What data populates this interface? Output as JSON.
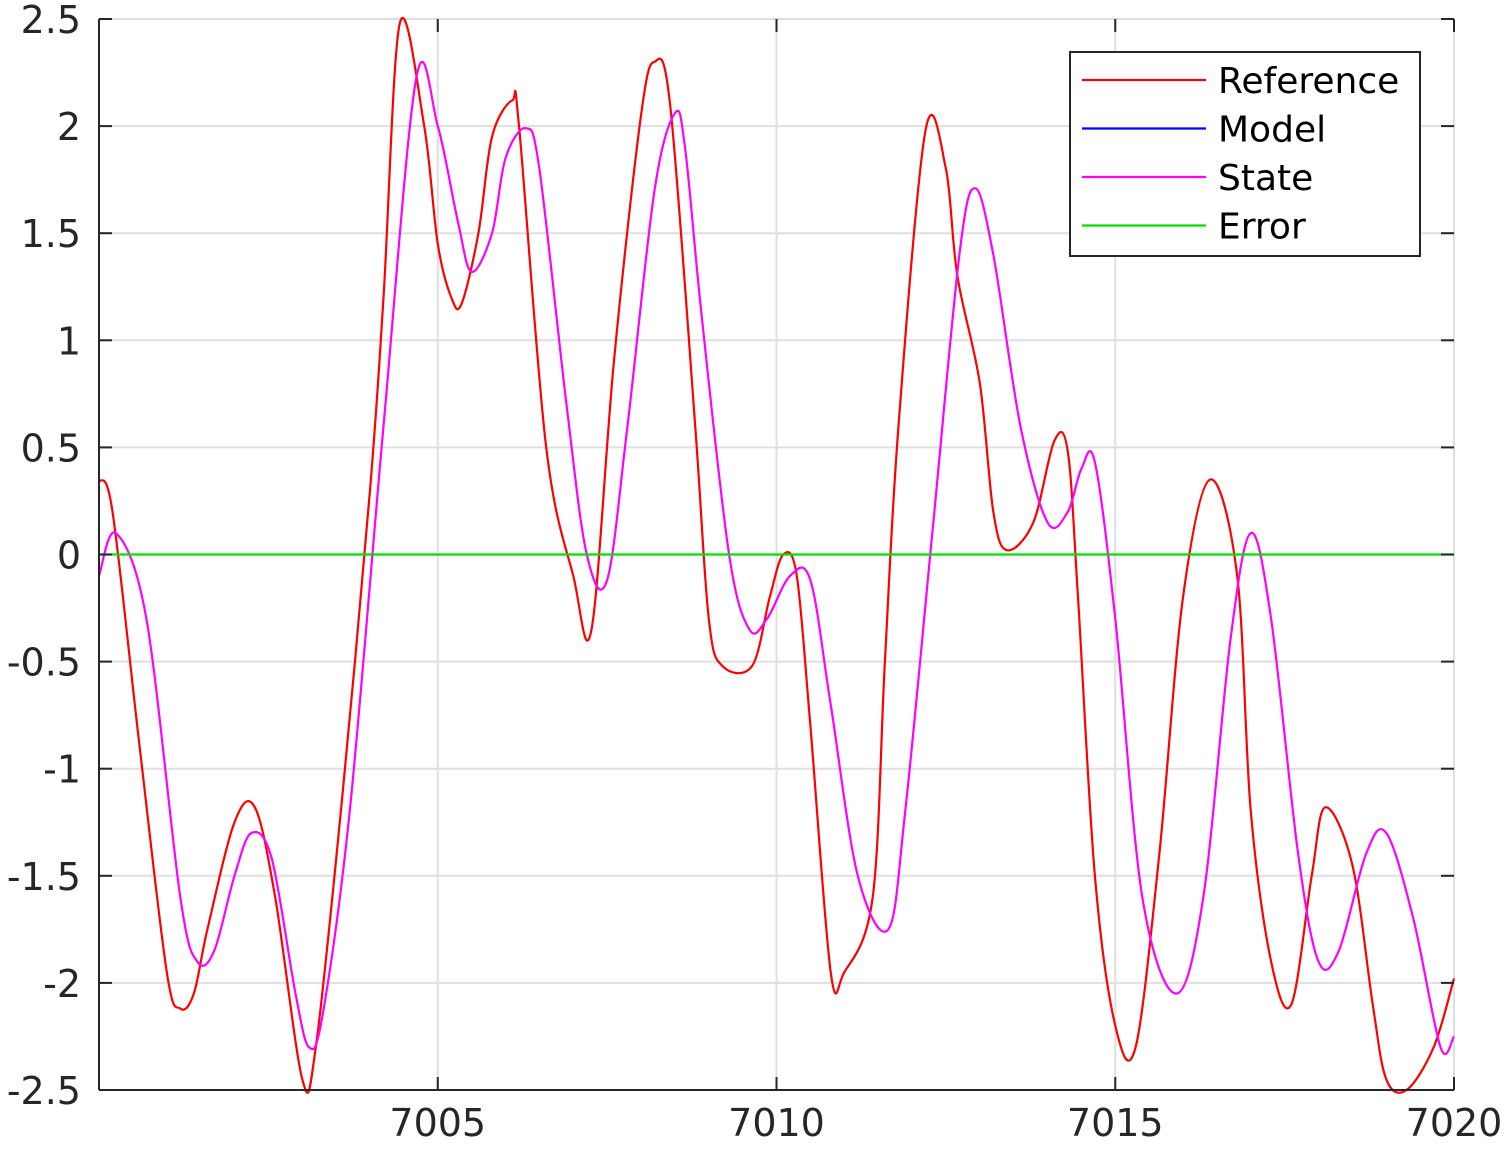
{
  "chart_data": {
    "type": "line",
    "title": "",
    "xlabel": "",
    "ylabel": "",
    "xlim": [
      7000,
      7020
    ],
    "ylim": [
      -2.5,
      2.5
    ],
    "xticks": [
      7005,
      7010,
      7015,
      7020
    ],
    "yticks": [
      2.5,
      2,
      1.5,
      1,
      0.5,
      0,
      -0.5,
      -1,
      -1.5,
      -2,
      -2.5
    ],
    "xtick_labels": [
      "7005",
      "7010",
      "7015",
      "7020"
    ],
    "ytick_labels": [
      "2.5",
      "2",
      "1.5",
      "1",
      "0.5",
      "0",
      "-0.5",
      "-1",
      "-1.5",
      "-2",
      "-2.5"
    ],
    "grid": true,
    "legend_position": "top-right",
    "series": [
      {
        "name": "Reference",
        "color": "#ff0000",
        "x": [
          7000.0,
          7000.2,
          7000.6,
          7001.0,
          7001.2,
          7001.4,
          7001.6,
          7002.0,
          7002.3,
          7002.6,
          7003.0,
          7003.2,
          7003.6,
          7004.0,
          7004.2,
          7004.44,
          7004.8,
          7005.0,
          7005.2,
          7005.35,
          7005.6,
          7005.8,
          7006.1,
          7006.2,
          7006.6,
          7007.0,
          7007.27,
          7007.6,
          7008.0,
          7008.2,
          7008.43,
          7008.8,
          7009.0,
          7009.2,
          7009.64,
          7009.9,
          7010.1,
          7010.3,
          7010.5,
          7010.8,
          7011.0,
          7011.42,
          7011.6,
          7011.8,
          7012.2,
          7012.5,
          7012.67,
          7013.0,
          7013.2,
          7013.4,
          7013.79,
          7014.1,
          7014.3,
          7014.45,
          7014.7,
          7015.0,
          7015.3,
          7015.65,
          7016.0,
          7016.4,
          7016.8,
          7017.0,
          7017.3,
          7017.6,
          7017.9,
          7018.1,
          7018.5,
          7018.8,
          7019.0,
          7019.3,
          7019.7,
          7020.0
        ],
        "y": [
          0.35,
          0.2,
          -0.9,
          -1.95,
          -2.12,
          -2.05,
          -1.75,
          -1.25,
          -1.18,
          -1.6,
          -2.45,
          -2.3,
          -1.1,
          0.3,
          1.2,
          2.48,
          2.0,
          1.45,
          1.2,
          1.17,
          1.5,
          1.95,
          2.12,
          2.0,
          0.5,
          -0.1,
          -0.35,
          0.9,
          2.05,
          2.3,
          2.1,
          0.6,
          -0.3,
          -0.52,
          -0.52,
          -0.2,
          0.0,
          -0.1,
          -0.8,
          -1.95,
          -1.95,
          -1.6,
          -0.5,
          0.6,
          1.98,
          1.8,
          1.3,
          0.8,
          0.2,
          0.02,
          0.15,
          0.53,
          0.48,
          -0.2,
          -1.5,
          -2.2,
          -2.3,
          -1.4,
          -0.2,
          0.35,
          -0.1,
          -1.2,
          -1.9,
          -2.1,
          -1.5,
          -1.18,
          -1.45,
          -2.1,
          -2.45,
          -2.5,
          -2.3,
          -1.98
        ]
      },
      {
        "name": "Model",
        "color": "#0000ff",
        "values": []
      },
      {
        "name": "State",
        "color": "#ff00ff",
        "x": [
          7000.0,
          7000.25,
          7000.7,
          7001.2,
          7001.45,
          7001.7,
          7002.0,
          7002.25,
          7002.55,
          7002.9,
          7003.1,
          7003.3,
          7003.7,
          7004.2,
          7004.68,
          7005.0,
          7005.3,
          7005.5,
          7005.8,
          7006.0,
          7006.3,
          7006.5,
          7006.9,
          7007.2,
          7007.5,
          7007.8,
          7008.2,
          7008.5,
          7008.65,
          7008.9,
          7009.3,
          7009.6,
          7009.86,
          7010.2,
          7010.5,
          7010.8,
          7011.2,
          7011.65,
          7011.9,
          7012.3,
          7012.7,
          7012.93,
          7013.2,
          7013.6,
          7014.0,
          7014.3,
          7014.5,
          7014.7,
          7015.0,
          7015.4,
          7015.9,
          7016.3,
          7016.7,
          7017.0,
          7017.3,
          7017.7,
          7018.0,
          7018.3,
          7018.7,
          7019.0,
          7019.4,
          7019.8,
          7020.0
        ],
        "y": [
          -0.1,
          0.1,
          -0.3,
          -1.6,
          -1.9,
          -1.85,
          -1.5,
          -1.3,
          -1.42,
          -2.05,
          -2.3,
          -2.15,
          -1.2,
          0.6,
          2.22,
          2.0,
          1.55,
          1.32,
          1.5,
          1.85,
          1.99,
          1.8,
          0.7,
          0.0,
          -0.12,
          0.6,
          1.7,
          2.06,
          1.9,
          1.1,
          0.0,
          -0.35,
          -0.3,
          -0.1,
          -0.12,
          -0.7,
          -1.5,
          -1.75,
          -1.2,
          0.1,
          1.4,
          1.71,
          1.4,
          0.6,
          0.15,
          0.2,
          0.4,
          0.43,
          -0.3,
          -1.6,
          -2.05,
          -1.6,
          -0.4,
          0.1,
          -0.3,
          -1.4,
          -1.9,
          -1.85,
          -1.4,
          -1.3,
          -1.7,
          -2.3,
          -2.25
        ]
      },
      {
        "name": "Error",
        "color": "#00e000",
        "x": [
          7000,
          7020
        ],
        "y": [
          0,
          0
        ]
      }
    ]
  }
}
